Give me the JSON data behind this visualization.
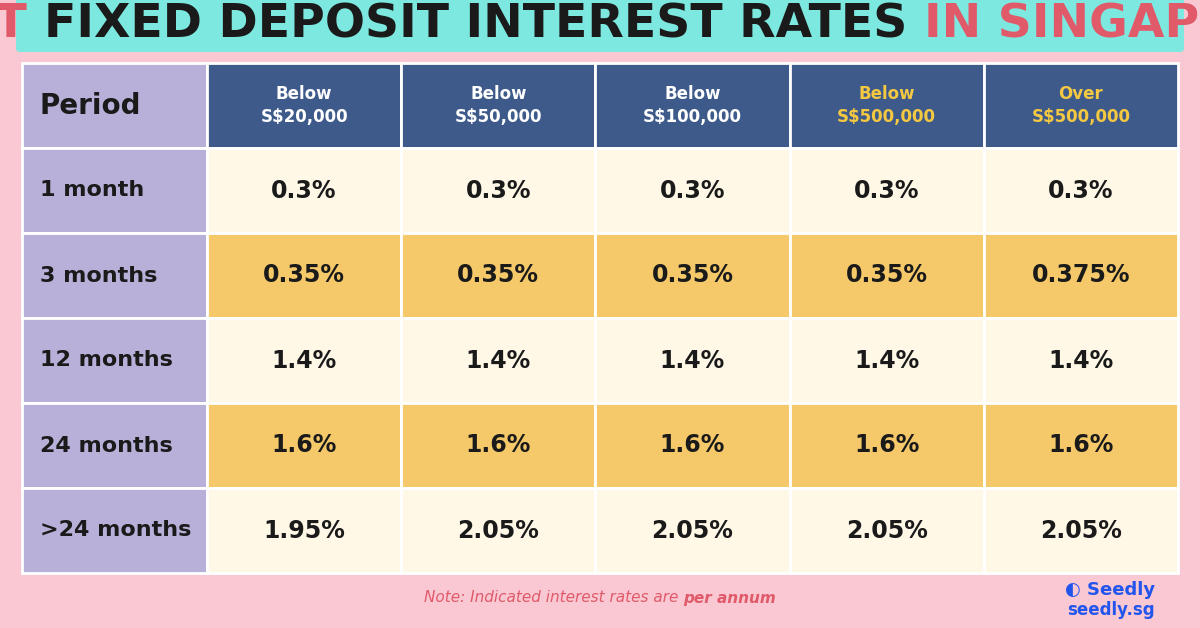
{
  "title_parts": [
    {
      "text": "BEST ",
      "color": "#E05A6A"
    },
    {
      "text": "FIXED DEPOSIT INTEREST RATES ",
      "color": "#1a1a1a"
    },
    {
      "text": "IN SINGAPORE",
      "color": "#E05A6A"
    }
  ],
  "title_bg": "#7DE8DF",
  "background_color": "#F9C8D2",
  "header_bg": "#3D5A8A",
  "header_text_color": "#ffffff",
  "header_highlight_color": "#F5C842",
  "period_col_bg": "#B8B0D8",
  "orange_row_bg": "#F5C96A",
  "light_row_bg": "#FFF8E7",
  "col_headers": [
    "Below\nS$20,000",
    "Below\nS$50,000",
    "Below\nS$100,000",
    "Below\nS$500,000",
    "Over\nS$500,000"
  ],
  "col_header_highlight": [
    false,
    false,
    false,
    true,
    true
  ],
  "periods": [
    "1 month",
    "3 months",
    "12 months",
    "24 months",
    ">24 months"
  ],
  "row_highlight": [
    false,
    true,
    false,
    true,
    false
  ],
  "values": [
    [
      "0.3%",
      "0.3%",
      "0.3%",
      "0.3%",
      "0.3%"
    ],
    [
      "0.35%",
      "0.35%",
      "0.35%",
      "0.35%",
      "0.375%"
    ],
    [
      "1.4%",
      "1.4%",
      "1.4%",
      "1.4%",
      "1.4%"
    ],
    [
      "1.6%",
      "1.6%",
      "1.6%",
      "1.6%",
      "1.6%"
    ],
    [
      "1.95%",
      "2.05%",
      "2.05%",
      "2.05%",
      "2.05%"
    ]
  ],
  "note_prefix": "Note: Indicated interest rates are ",
  "note_bold": "per annum",
  "note_color": "#E05A6A",
  "seedly_color": "#2255EE",
  "cell_text_color": "#1a1a1a",
  "title_fontsize": 34,
  "header_fontsize": 12,
  "period_fontsize": 16,
  "value_fontsize": 17
}
